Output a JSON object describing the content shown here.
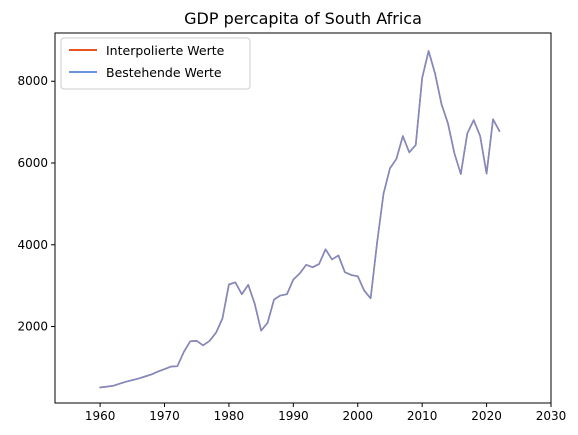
{
  "chart_data": {
    "type": "line",
    "title": "GDP percapita of South Africa",
    "xlabel": "",
    "ylabel": "",
    "xlim": [
      1953,
      2030
    ],
    "ylim": [
      130,
      9180
    ],
    "xticks": [
      1960,
      1970,
      1980,
      1990,
      2000,
      2010,
      2020,
      2030
    ],
    "yticks": [
      2000,
      4000,
      6000,
      8000
    ],
    "grid": false,
    "legend_position": "top-left",
    "x": [
      1960,
      1961,
      1962,
      1963,
      1964,
      1965,
      1966,
      1967,
      1968,
      1969,
      1970,
      1971,
      1972,
      1973,
      1974,
      1975,
      1976,
      1977,
      1978,
      1979,
      1980,
      1981,
      1982,
      1983,
      1984,
      1985,
      1986,
      1987,
      1988,
      1989,
      1990,
      1991,
      1992,
      1993,
      1994,
      1995,
      1996,
      1997,
      1998,
      1999,
      2000,
      2001,
      2002,
      2003,
      2004,
      2005,
      2006,
      2007,
      2008,
      2009,
      2010,
      2011,
      2012,
      2013,
      2014,
      2015,
      2016,
      2017,
      2018,
      2019,
      2020,
      2021,
      2022
    ],
    "series": [
      {
        "name": "Interpolierte Werte",
        "color": "#e8531f",
        "values": [
          510,
          530,
          550,
          600,
          650,
          690,
          730,
          780,
          830,
          900,
          960,
          1020,
          1030,
          1380,
          1640,
          1650,
          1540,
          1650,
          1850,
          2200,
          3030,
          3080,
          2790,
          3020,
          2560,
          1900,
          2090,
          2660,
          2760,
          2790,
          3150,
          3300,
          3510,
          3450,
          3530,
          3890,
          3640,
          3740,
          3330,
          3260,
          3230,
          2880,
          2690,
          4050,
          5250,
          5870,
          6100,
          6660,
          6260,
          6440,
          8080,
          8740,
          8190,
          7440,
          6970,
          6240,
          5730,
          6720,
          7050,
          6660,
          5740,
          7070,
          6780
        ]
      },
      {
        "name": "Bestehende Werte",
        "color": "#6b95e0",
        "values": [
          510,
          530,
          550,
          600,
          650,
          690,
          730,
          780,
          830,
          900,
          960,
          1020,
          1030,
          1380,
          1640,
          1650,
          1540,
          1650,
          1850,
          2200,
          3030,
          3080,
          2790,
          3020,
          2560,
          1900,
          2090,
          2660,
          2760,
          2790,
          3150,
          3300,
          3510,
          3450,
          3530,
          3890,
          3640,
          3740,
          3330,
          3260,
          3230,
          2880,
          2690,
          4050,
          5250,
          5870,
          6100,
          6660,
          6260,
          6440,
          8080,
          8740,
          8190,
          7440,
          6970,
          6240,
          5730,
          6720,
          7050,
          6660,
          5740,
          7070,
          6780
        ]
      }
    ]
  }
}
